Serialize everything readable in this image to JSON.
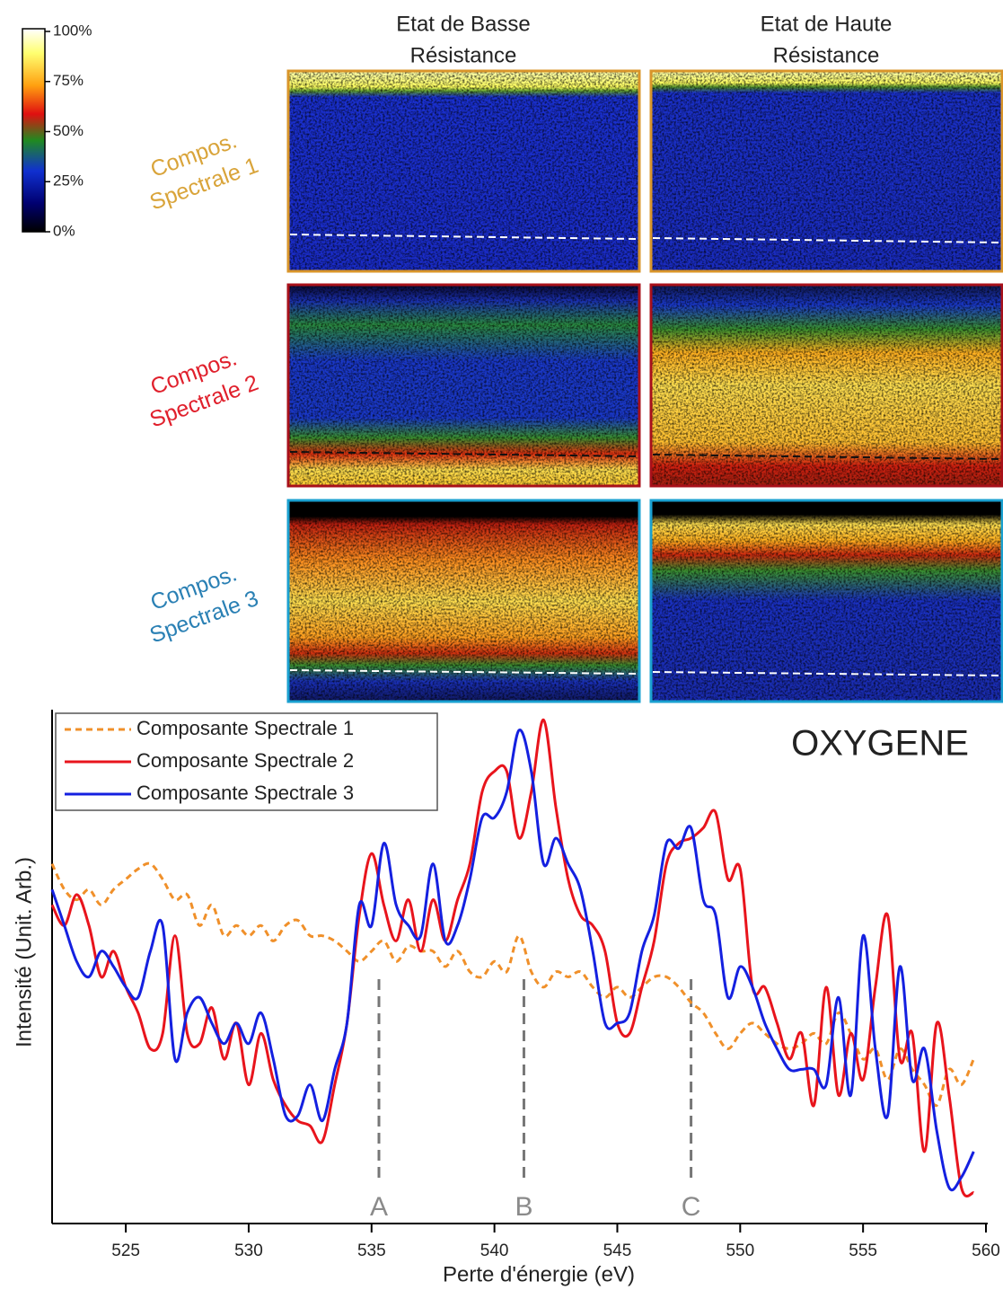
{
  "chart_data": [
    {
      "type": "heatmap",
      "columns": [
        [
          "Etat de Basse",
          "Résistance"
        ],
        [
          "Etat de Haute",
          "Résistance"
        ]
      ],
      "rows": [
        {
          "label": [
            "Compos.",
            "Spectrale 1"
          ],
          "color": "#d9a43a"
        },
        {
          "label": [
            "Compos.",
            "Spectrale 2"
          ],
          "color": "#e0202c"
        },
        {
          "label": [
            "Compos.",
            "Spectrale 3"
          ],
          "color": "#2a80b4"
        }
      ],
      "colorbar": {
        "ticks": [
          {
            "value": 100,
            "label": "100%"
          },
          {
            "value": 75,
            "label": "75%"
          },
          {
            "value": 50,
            "label": "50%"
          },
          {
            "value": 25,
            "label": "25%"
          },
          {
            "value": 0,
            "label": "0%"
          }
        ]
      }
    },
    {
      "type": "line",
      "title": "OXYGENE",
      "xlabel": "Perte d'énergie (eV)",
      "ylabel": "Intensité (Unit. Arb.)",
      "xlim": [
        522,
        560
      ],
      "ylim": [
        0,
        100
      ],
      "xticks": [
        525,
        530,
        535,
        540,
        545,
        550,
        555,
        560
      ],
      "legend": "upper left",
      "x": [
        522,
        522.5,
        523,
        523.5,
        524,
        524.5,
        525,
        525.5,
        526,
        526.5,
        527,
        527.5,
        528,
        528.5,
        529,
        529.5,
        530,
        530.5,
        531,
        531.5,
        532,
        532.5,
        533,
        533.5,
        534,
        534.5,
        535,
        535.5,
        536,
        536.5,
        537,
        537.5,
        538,
        538.5,
        539,
        539.5,
        540,
        540.5,
        541,
        541.5,
        542,
        542.5,
        543,
        543.5,
        544,
        544.5,
        545,
        545.5,
        546,
        546.5,
        547,
        547.5,
        548,
        548.5,
        549,
        549.5,
        550,
        550.5,
        551,
        551.5,
        552,
        552.5,
        553,
        553.5,
        554,
        554.5,
        555,
        555.5,
        556,
        556.5,
        557,
        557.5,
        558,
        558.5,
        559,
        559.5
      ],
      "series": [
        {
          "name": "Composante Spectrale 1",
          "color": "#f0902a",
          "dashed": true,
          "values": [
            70,
            65,
            63,
            65,
            62,
            65,
            67,
            69,
            70,
            67,
            63,
            64,
            58,
            62,
            56,
            58,
            56,
            58,
            55,
            58,
            59,
            56,
            56,
            55,
            53,
            51,
            53,
            55,
            51,
            54,
            53,
            53,
            50,
            53,
            49,
            48,
            51,
            49,
            56,
            49,
            46,
            49,
            48,
            49,
            46,
            44,
            46,
            44,
            46,
            48,
            48,
            46,
            43,
            41,
            37,
            34,
            37,
            39,
            37,
            35,
            34,
            35,
            37,
            35,
            41,
            37,
            32,
            34,
            28,
            34,
            30,
            27,
            23,
            30,
            27,
            32
          ]
        },
        {
          "name": "Composante Spectrale 2",
          "color": "#e8141c",
          "dashed": false,
          "values": [
            62,
            58,
            64,
            58,
            48,
            53,
            46,
            41,
            34,
            37,
            56,
            37,
            35,
            42,
            32,
            39,
            27,
            37,
            28,
            23,
            20,
            19,
            16,
            27,
            39,
            60,
            72,
            62,
            55,
            63,
            53,
            63,
            55,
            63,
            70,
            84,
            88,
            88,
            75,
            84,
            98,
            81,
            67,
            60,
            58,
            53,
            39,
            37,
            46,
            55,
            70,
            74,
            75,
            77,
            80,
            67,
            69,
            46,
            46,
            39,
            32,
            37,
            23,
            46,
            25,
            37,
            28,
            46,
            60,
            32,
            37,
            14,
            39,
            25,
            7,
            6
          ]
        },
        {
          "name": "Composante Spectrale 3",
          "color": "#1420e0",
          "dashed": false,
          "values": [
            65,
            58,
            51,
            48,
            53,
            50,
            46,
            44,
            53,
            58,
            32,
            41,
            44,
            39,
            35,
            39,
            35,
            41,
            32,
            21,
            21,
            27,
            20,
            30,
            39,
            62,
            58,
            74,
            62,
            58,
            56,
            70,
            55,
            58,
            67,
            79,
            79,
            84,
            96,
            88,
            70,
            75,
            70,
            65,
            53,
            39,
            39,
            41,
            53,
            60,
            74,
            73,
            77,
            63,
            60,
            44,
            50,
            46,
            39,
            34,
            30,
            30,
            30,
            27,
            44,
            25,
            56,
            34,
            21,
            50,
            28,
            34,
            18,
            7,
            9,
            14
          ]
        }
      ],
      "annotations": [
        {
          "label": "A",
          "x": 535.3
        },
        {
          "label": "B",
          "x": 541.2
        },
        {
          "label": "C",
          "x": 548
        }
      ]
    }
  ]
}
